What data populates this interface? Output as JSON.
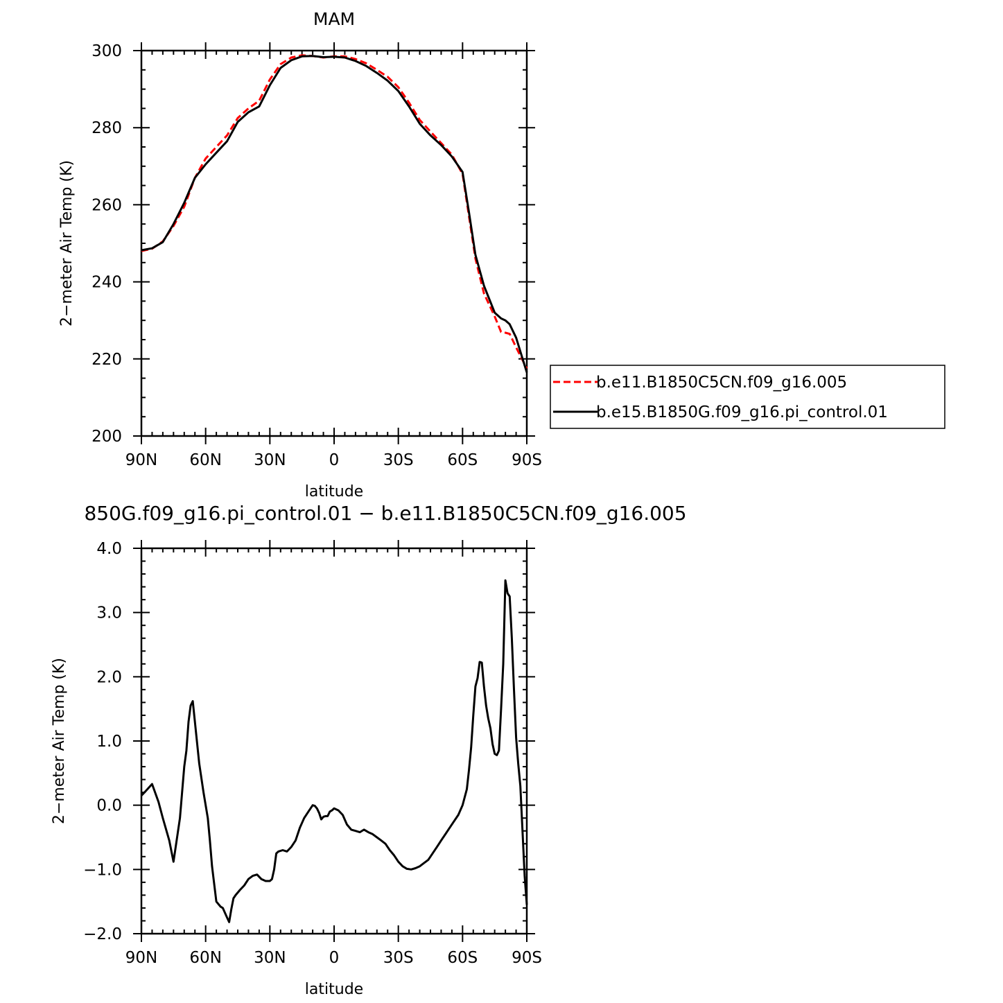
{
  "chart_data": [
    {
      "type": "line",
      "title": "MAM",
      "xlabel": "latitude",
      "ylabel": "2−meter Air Temp (K)",
      "xlim": [
        90,
        -90
      ],
      "ylim": [
        200,
        300
      ],
      "x_ticks": [
        90,
        60,
        30,
        0,
        -30,
        -60,
        -90
      ],
      "x_tick_labels": [
        "90N",
        "60N",
        "30N",
        "0",
        "30S",
        "60S",
        "90S"
      ],
      "y_ticks": [
        200,
        220,
        240,
        260,
        280,
        300
      ],
      "y_tick_labels": [
        "200",
        "220",
        "240",
        "260",
        "280",
        "300"
      ],
      "legend_position": "right",
      "series": [
        {
          "name": "b.e11.B1850C5CN.f09_g16.005",
          "color": "#ff0000",
          "style": "dashed",
          "x": [
            90,
            85,
            80,
            75,
            70,
            65,
            60,
            55,
            50,
            45,
            40,
            35,
            30,
            25,
            20,
            15,
            10,
            5,
            0,
            -5,
            -10,
            -15,
            -20,
            -25,
            -30,
            -35,
            -40,
            -45,
            -50,
            -55,
            -60,
            -63,
            -66,
            -70,
            -75,
            -78,
            -80,
            -82,
            -85,
            -90
          ],
          "values": [
            248.0,
            248.6,
            250.5,
            254.5,
            259.5,
            267.0,
            272.0,
            275.0,
            278.0,
            282.5,
            285.0,
            287.0,
            292.5,
            296.5,
            298.2,
            298.8,
            298.6,
            298.2,
            298.5,
            298.5,
            297.8,
            296.7,
            295.0,
            293.2,
            290.5,
            286.5,
            282.0,
            279.0,
            276.0,
            273.0,
            268.0,
            257.0,
            246.0,
            237.0,
            231.0,
            227.0,
            226.8,
            226.5,
            223.0,
            217.5
          ]
        },
        {
          "name": "b.e15.B1850G.f09_g16.pi_control.01",
          "color": "#000000",
          "style": "solid",
          "x": [
            90,
            85,
            80,
            75,
            70,
            65,
            60,
            55,
            50,
            45,
            40,
            35,
            30,
            25,
            20,
            15,
            10,
            5,
            0,
            -5,
            -10,
            -15,
            -20,
            -25,
            -30,
            -35,
            -40,
            -45,
            -50,
            -55,
            -60,
            -63,
            -66,
            -70,
            -75,
            -78,
            -80,
            -82,
            -85,
            -90
          ],
          "values": [
            248.2,
            248.7,
            250.3,
            255.0,
            260.5,
            267.0,
            270.5,
            273.5,
            276.5,
            281.5,
            284.0,
            285.5,
            291.0,
            295.5,
            297.5,
            298.5,
            298.6,
            298.3,
            298.4,
            298.2,
            297.3,
            296.0,
            294.2,
            292.2,
            289.5,
            285.5,
            281.0,
            278.0,
            275.5,
            272.5,
            268.5,
            258.0,
            247.0,
            239.0,
            232.0,
            230.5,
            230.0,
            229.0,
            225.5,
            216.5
          ]
        }
      ]
    },
    {
      "type": "line",
      "title": "850G.f09_g16.pi_control.01 − b.e11.B1850C5CN.f09_g16.005",
      "xlabel": "latitude",
      "ylabel": "2−meter Air Temp (K)",
      "xlim": [
        90,
        -90
      ],
      "ylim": [
        -2.0,
        4.0
      ],
      "x_ticks": [
        90,
        60,
        30,
        0,
        -30,
        -60,
        -90
      ],
      "x_tick_labels": [
        "90N",
        "60N",
        "30N",
        "0",
        "30S",
        "60S",
        "90S"
      ],
      "y_ticks": [
        -2,
        -1,
        0,
        1,
        2,
        3,
        4
      ],
      "y_tick_labels": [
        "−2.0",
        "−1.0",
        "0.0",
        "1.0",
        "2.0",
        "3.0",
        "4.0"
      ],
      "series": [
        {
          "color": "#000000",
          "style": "solid",
          "x": [
            90,
            88,
            85,
            82,
            80,
            77,
            75,
            72,
            70,
            69,
            68,
            67,
            66,
            63,
            61,
            59,
            58,
            57,
            55,
            53,
            52,
            50,
            49,
            48,
            47,
            46,
            44,
            42,
            40,
            38,
            36,
            34,
            32,
            30,
            29,
            28,
            27,
            26,
            24,
            22,
            20,
            18,
            16,
            14,
            12,
            10,
            9,
            8,
            7,
            6,
            5,
            4,
            3,
            2,
            1,
            0,
            -2,
            -4,
            -6,
            -8,
            -10,
            -12,
            -14,
            -16,
            -18,
            -20,
            -22,
            -24,
            -26,
            -28,
            -30,
            -32,
            -34,
            -36,
            -38,
            -40,
            -42,
            -44,
            -45,
            -46,
            -48,
            -50,
            -52,
            -54,
            -56,
            -58,
            -60,
            -62,
            -63,
            -64,
            -65,
            -66,
            -67,
            -68,
            -69,
            -70,
            -71,
            -72,
            -73,
            -74,
            -75,
            -76,
            -77,
            -78,
            -79,
            -80,
            -81,
            -82,
            -83,
            -84,
            -85,
            -86,
            -87,
            -88,
            -89,
            -90
          ],
          "values": [
            0.15,
            0.22,
            0.33,
            0.05,
            -0.2,
            -0.55,
            -0.88,
            -0.2,
            0.6,
            0.85,
            1.3,
            1.55,
            1.62,
            0.65,
            0.2,
            -0.2,
            -0.55,
            -0.95,
            -1.5,
            -1.58,
            -1.6,
            -1.75,
            -1.82,
            -1.62,
            -1.45,
            -1.4,
            -1.32,
            -1.25,
            -1.15,
            -1.1,
            -1.08,
            -1.15,
            -1.18,
            -1.18,
            -1.15,
            -1.0,
            -0.75,
            -0.72,
            -0.7,
            -0.72,
            -0.65,
            -0.55,
            -0.35,
            -0.2,
            -0.1,
            0.0,
            -0.01,
            -0.05,
            -0.12,
            -0.22,
            -0.18,
            -0.17,
            -0.17,
            -0.1,
            -0.08,
            -0.05,
            -0.08,
            -0.15,
            -0.3,
            -0.38,
            -0.4,
            -0.42,
            -0.38,
            -0.42,
            -0.45,
            -0.5,
            -0.55,
            -0.6,
            -0.7,
            -0.78,
            -0.88,
            -0.95,
            -0.99,
            -1.0,
            -0.98,
            -0.95,
            -0.9,
            -0.85,
            -0.8,
            -0.75,
            -0.65,
            -0.55,
            -0.45,
            -0.35,
            -0.25,
            -0.15,
            0.0,
            0.25,
            0.55,
            0.9,
            1.4,
            1.85,
            1.98,
            2.23,
            2.22,
            1.85,
            1.55,
            1.35,
            1.2,
            0.95,
            0.8,
            0.78,
            0.85,
            1.5,
            2.2,
            3.5,
            3.3,
            3.25,
            2.6,
            1.8,
            1.05,
            0.65,
            0.3,
            -0.4,
            -1.1,
            -1.55
          ]
        }
      ]
    }
  ]
}
